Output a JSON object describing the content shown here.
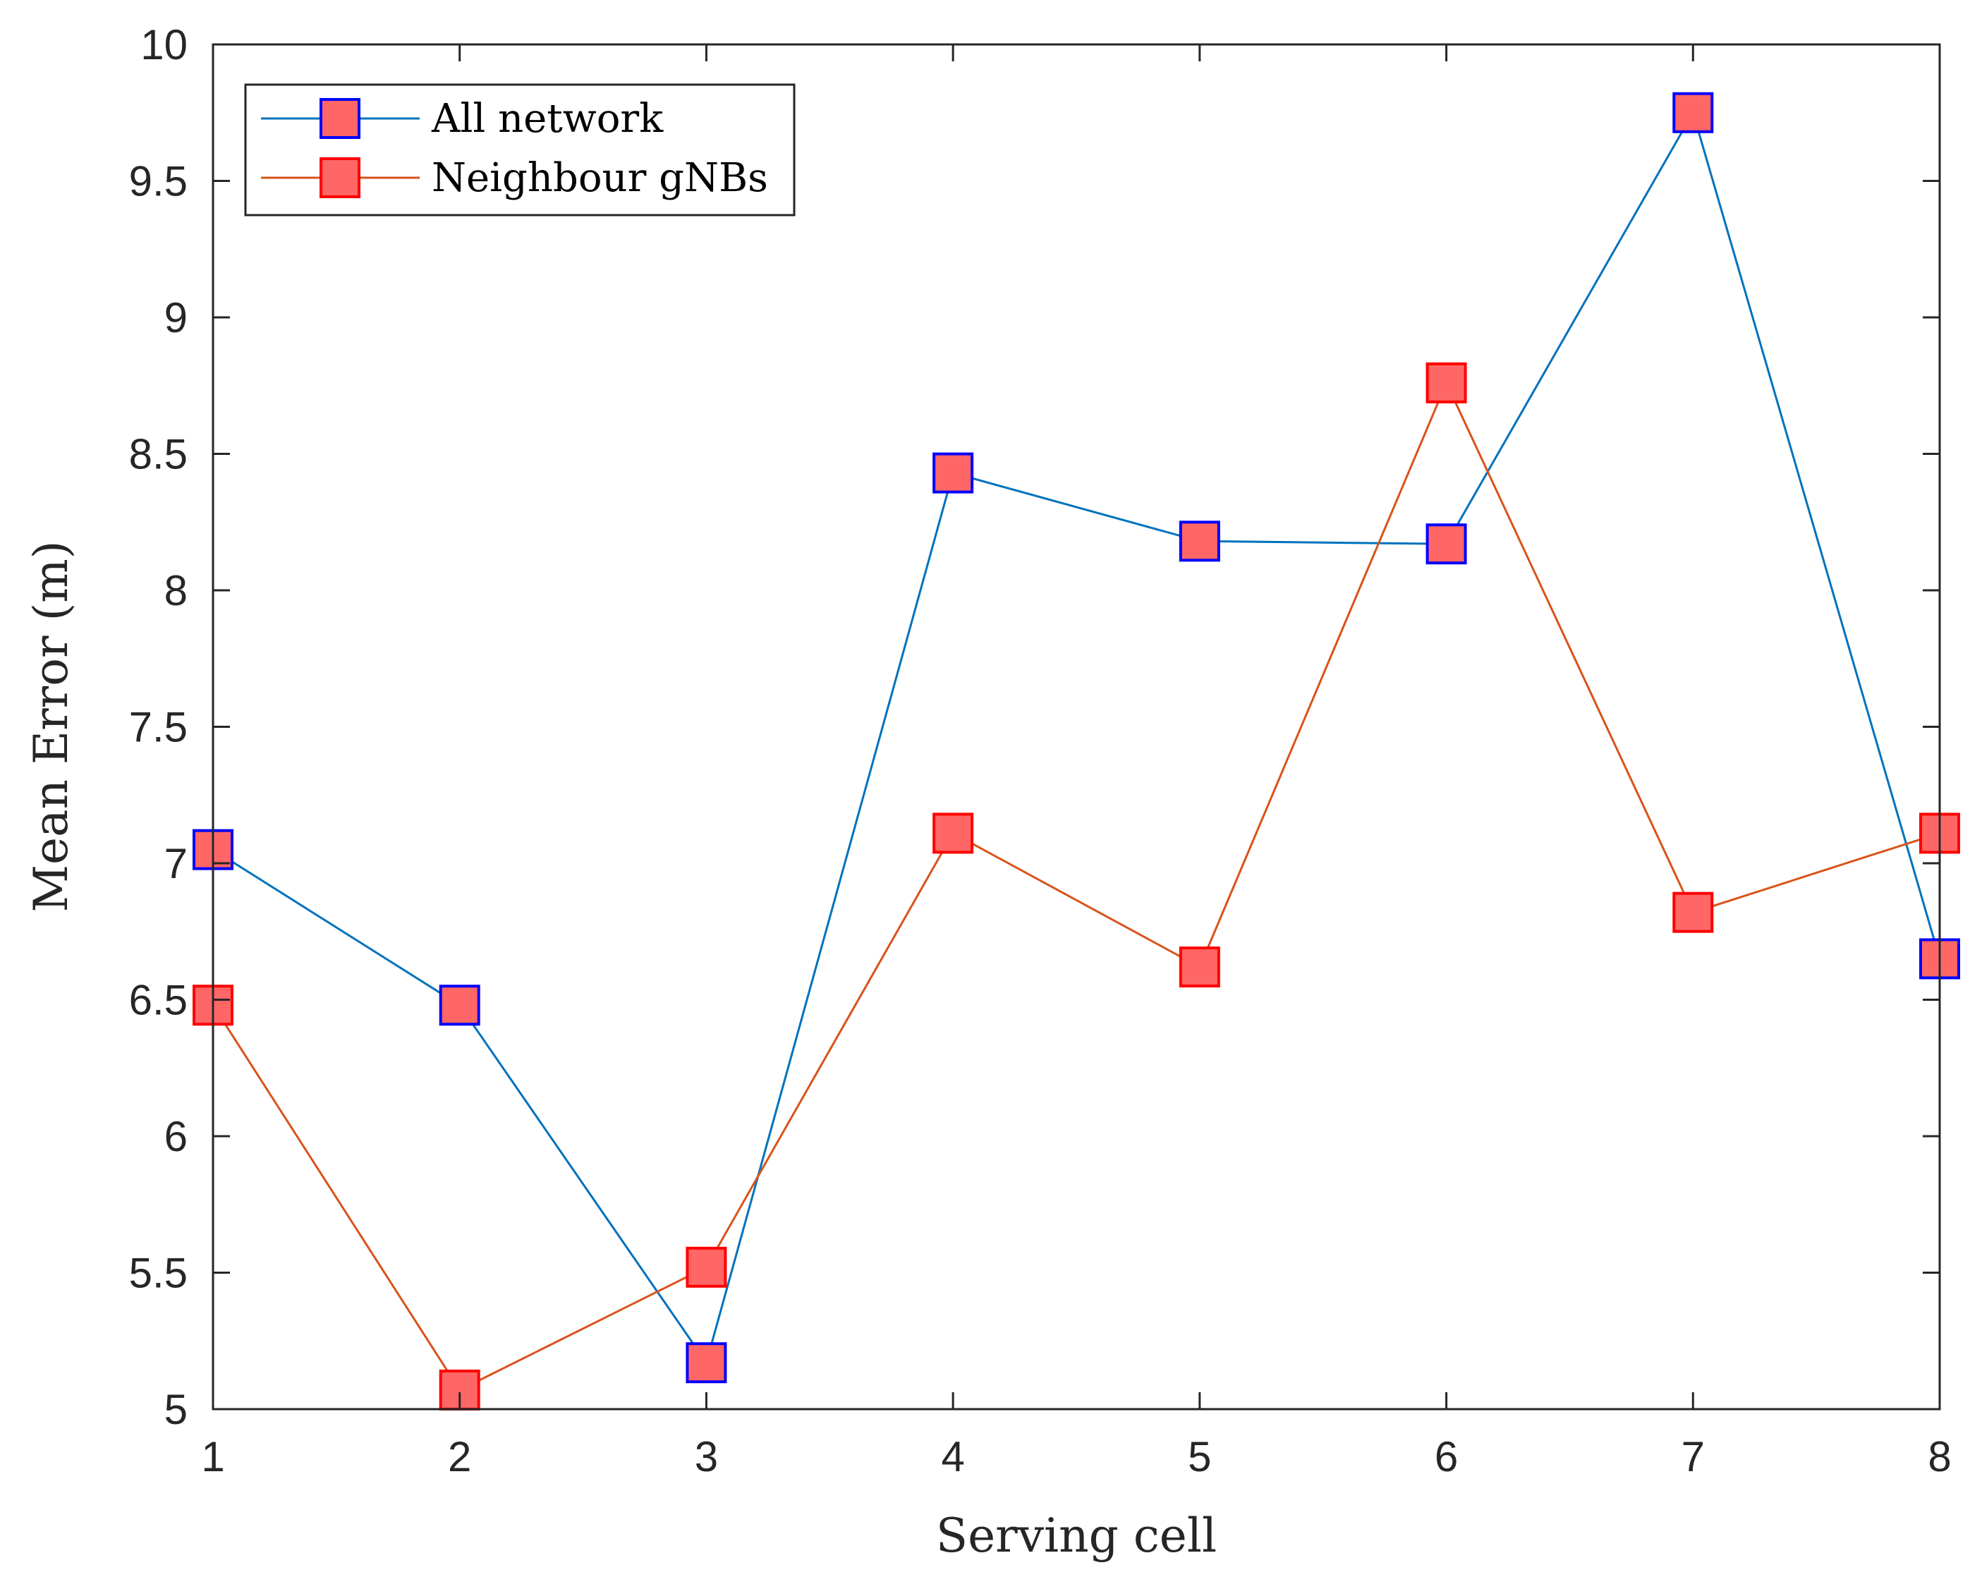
{
  "chart_data": {
    "type": "line",
    "title": "",
    "xlabel": "Serving cell",
    "ylabel": "Mean Error (m)",
    "x": [
      1,
      2,
      3,
      4,
      5,
      6,
      7,
      8
    ],
    "xlim": [
      1,
      8
    ],
    "ylim": [
      5,
      10
    ],
    "xticks": [
      "1",
      "2",
      "3",
      "4",
      "5",
      "6",
      "7",
      "8"
    ],
    "yticks": [
      "5",
      "5.5",
      "6",
      "6.5",
      "7",
      "7.5",
      "8",
      "8.5",
      "9",
      "9.5",
      "10"
    ],
    "grid": false,
    "legend_position": "top-left",
    "series": [
      {
        "name": "All network",
        "values": [
          7.05,
          6.48,
          5.17,
          8.43,
          8.18,
          8.17,
          9.75,
          6.65
        ],
        "line_color": "#0072BD",
        "marker": "square",
        "marker_face": "#FF6666",
        "marker_edge": "#0000FF"
      },
      {
        "name": "Neighbour gNBs",
        "values": [
          6.48,
          5.07,
          5.52,
          7.11,
          6.62,
          8.76,
          6.82,
          7.11
        ],
        "line_color": "#D95319",
        "marker": "square",
        "marker_face": "#FF6666",
        "marker_edge": "#FF0000"
      }
    ]
  }
}
